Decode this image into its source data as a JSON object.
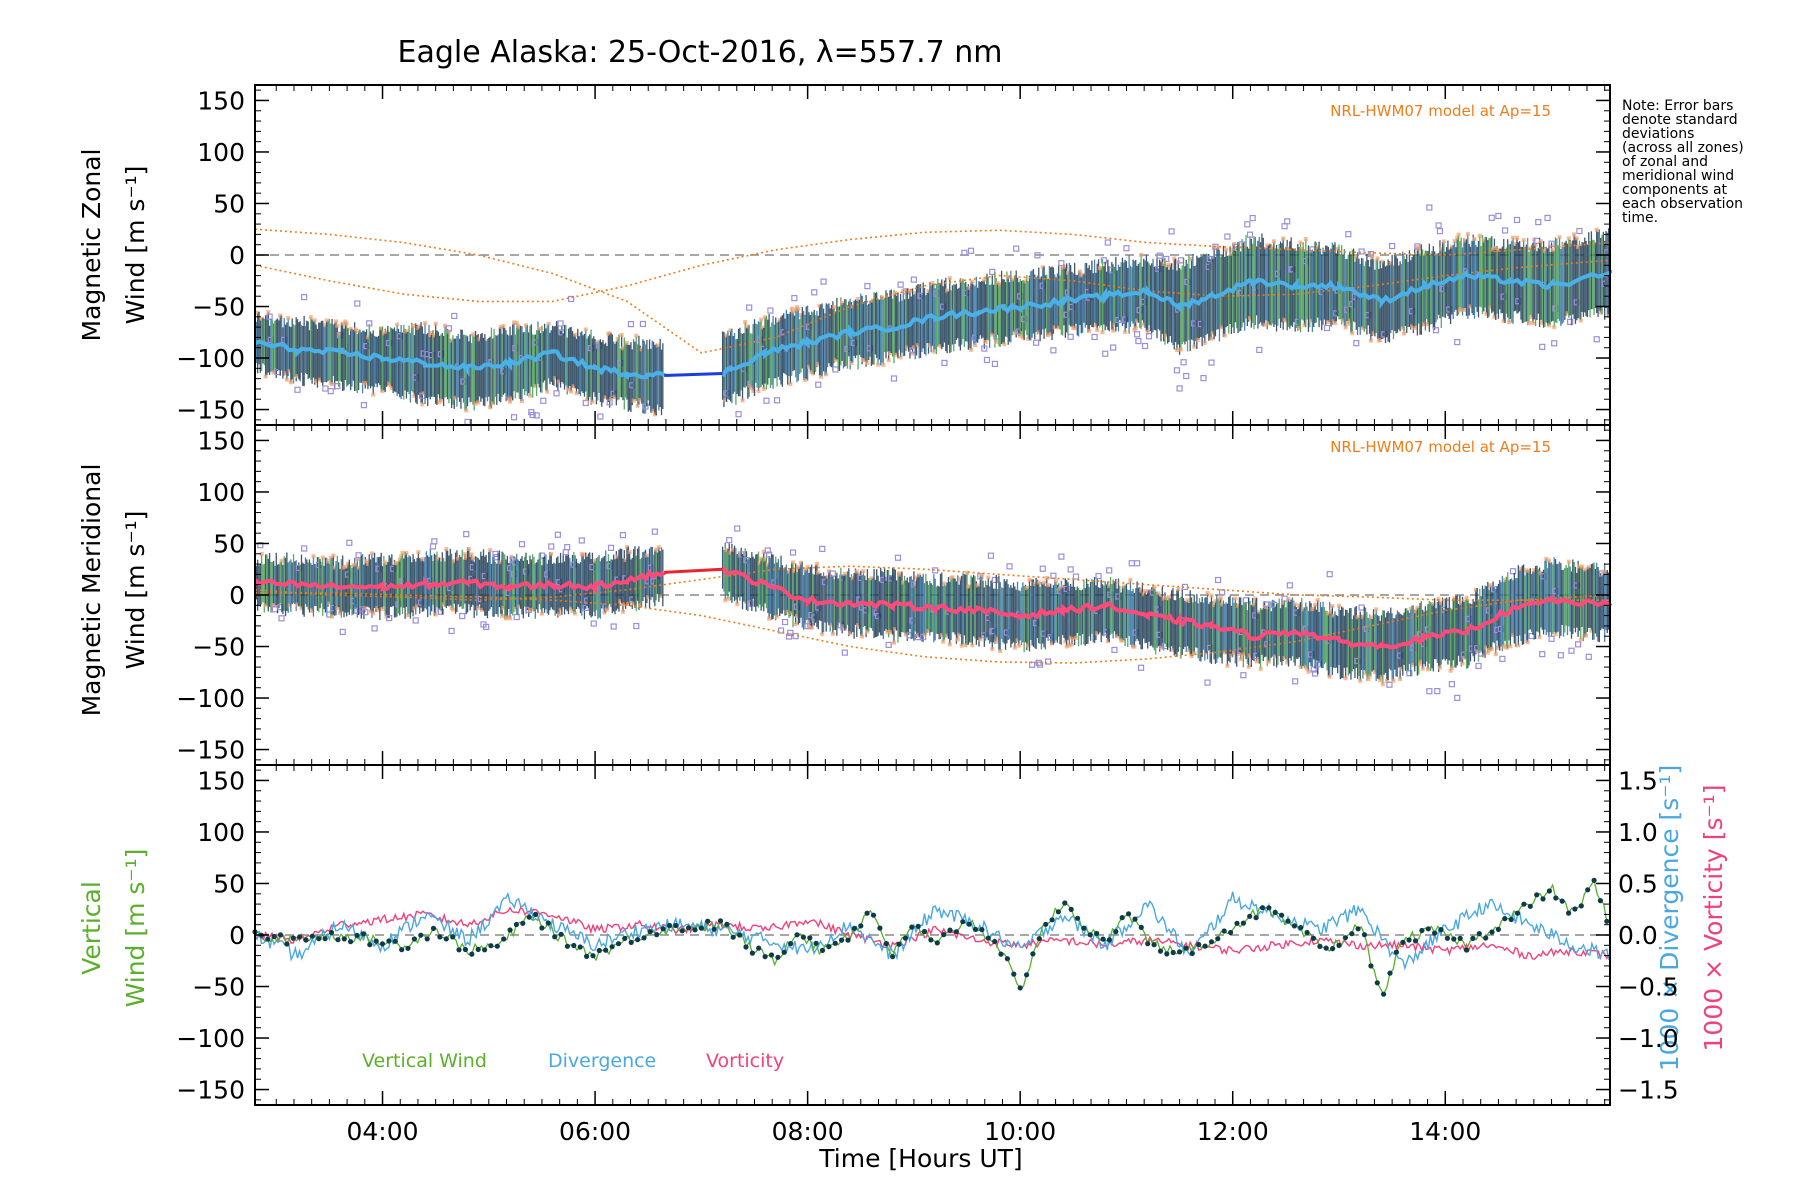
{
  "colors": {
    "zonal_mean": "#4ab0e8",
    "zonal_gap": "#1f3cde",
    "meridional_mean": "#ff4a7a",
    "meridional_gap": "#e8262d",
    "errorbar_dark": "#1b3a52",
    "errorbar_green": "#3e9a4a",
    "errorbar_orange": "#f5a06e",
    "scatter": "#9a8fdc",
    "model": "#f07d1a",
    "vertical": "#5bb02a",
    "vertical_dots": "#0d3b4a",
    "divergence": "#4aa8e0",
    "vorticity": "#f0427a",
    "zero_line": "#8a8a8a"
  },
  "figure": {
    "title": "Eagle Alaska: 25-Oct-2016, λ=557.7 nm",
    "xlabel": "Time [Hours UT]",
    "note": [
      "Note: Error bars",
      "denote standard",
      "deviations",
      "(across all zones)",
      "of zonal and",
      "meridional wind",
      "components at",
      "each observation",
      "time."
    ],
    "model_label": "NRL-HWM07 model at Ap=15"
  },
  "chart_data": [
    {
      "type": "line",
      "panel": "zonal",
      "ylabel_lines": [
        "Magnetic Zonal",
        "Wind [m s⁻¹]"
      ],
      "xlim": [
        2.8,
        15.55
      ],
      "ylim": [
        -165,
        165
      ],
      "xticks": [
        4,
        6,
        8,
        10,
        12,
        14
      ],
      "xtick_labels": [
        "04:00",
        "06:00",
        "08:00",
        "10:00",
        "12:00",
        "14:00"
      ],
      "yticks": [
        -150,
        -100,
        -50,
        0,
        50,
        100,
        150
      ],
      "zero_line": true,
      "gap": [
        6.65,
        7.2
      ],
      "series": [
        {
          "role": "mean",
          "x": [
            2.8,
            3.2,
            3.6,
            4.0,
            4.4,
            4.8,
            5.2,
            5.6,
            6.0,
            6.3,
            6.65,
            7.2,
            7.6,
            8.0,
            8.4,
            8.8,
            9.2,
            9.6,
            10.0,
            10.4,
            10.8,
            11.2,
            11.5,
            11.8,
            12.2,
            12.6,
            13.0,
            13.4,
            13.8,
            14.2,
            14.6,
            15.0,
            15.55
          ],
          "y": [
            -85,
            -92,
            -95,
            -100,
            -105,
            -110,
            -105,
            -95,
            -110,
            -115,
            -117,
            -115,
            -95,
            -85,
            -75,
            -70,
            -60,
            -55,
            -50,
            -45,
            -40,
            -35,
            -50,
            -40,
            -25,
            -30,
            -30,
            -45,
            -30,
            -20,
            -25,
            -30,
            -18
          ]
        },
        {
          "role": "upper",
          "y": [
            -60,
            -65,
            -70,
            -75,
            -70,
            -80,
            -72,
            -70,
            -80,
            -85,
            -85,
            -80,
            -65,
            -55,
            -45,
            -40,
            -30,
            -25,
            -20,
            -15,
            -10,
            -5,
            -10,
            0,
            15,
            10,
            5,
            -10,
            5,
            15,
            10,
            10,
            20
          ]
        },
        {
          "role": "lower",
          "y": [
            -110,
            -120,
            -125,
            -130,
            -140,
            -145,
            -140,
            -125,
            -140,
            -145,
            -150,
            -145,
            -125,
            -115,
            -105,
            -100,
            -90,
            -85,
            -80,
            -75,
            -70,
            -70,
            -90,
            -80,
            -65,
            -70,
            -65,
            -80,
            -70,
            -55,
            -60,
            -65,
            -55
          ]
        },
        {
          "role": "model_1",
          "x": [
            2.8,
            3.5,
            4.2,
            4.9,
            5.6,
            6.3,
            7.0,
            7.7,
            8.4,
            9.1,
            9.8,
            10.5,
            11.2,
            11.9,
            12.6,
            13.3,
            14.0,
            14.7,
            15.55
          ],
          "y": [
            25,
            20,
            12,
            0,
            -18,
            -45,
            -95,
            -80,
            -50,
            -30,
            -20,
            -25,
            -35,
            -40,
            -38,
            -30,
            -20,
            -12,
            -5
          ]
        },
        {
          "role": "model_2",
          "x": [
            2.8,
            3.5,
            4.2,
            4.9,
            5.6,
            6.3,
            7.0,
            7.7,
            8.4,
            9.1,
            9.8,
            10.5,
            11.2,
            11.9,
            12.6,
            13.3,
            14.0,
            14.7,
            15.55
          ],
          "y": [
            -10,
            -25,
            -38,
            -45,
            -45,
            -30,
            -10,
            5,
            15,
            22,
            24,
            20,
            12,
            8,
            5,
            2,
            0,
            5,
            12
          ]
        }
      ],
      "annotation": "NRL-HWM07 model at Ap=15"
    },
    {
      "type": "line",
      "panel": "meridional",
      "ylabel_lines": [
        "Magnetic Meridional",
        "Wind [m s⁻¹]"
      ],
      "xlim": [
        2.8,
        15.55
      ],
      "ylim": [
        -165,
        165
      ],
      "yticks": [
        -150,
        -100,
        -50,
        0,
        50,
        100,
        150
      ],
      "zero_line": true,
      "gap": [
        6.65,
        7.2
      ],
      "series": [
        {
          "role": "mean",
          "x": [
            2.8,
            3.2,
            3.6,
            4.0,
            4.4,
            4.8,
            5.2,
            5.6,
            6.0,
            6.3,
            6.65,
            7.2,
            7.6,
            8.0,
            8.4,
            8.8,
            9.2,
            9.6,
            10.0,
            10.4,
            10.8,
            11.2,
            11.5,
            11.8,
            12.2,
            12.6,
            13.0,
            13.4,
            13.8,
            14.2,
            14.6,
            15.0,
            15.55
          ],
          "y": [
            12,
            10,
            8,
            8,
            10,
            12,
            8,
            10,
            8,
            15,
            22,
            25,
            10,
            -5,
            -8,
            -10,
            -12,
            -15,
            -20,
            -15,
            -10,
            -20,
            -25,
            -30,
            -40,
            -35,
            -45,
            -50,
            -42,
            -35,
            -15,
            -5,
            -10
          ]
        },
        {
          "role": "upper",
          "y": [
            35,
            35,
            32,
            35,
            38,
            40,
            35,
            35,
            35,
            40,
            45,
            45,
            35,
            25,
            20,
            20,
            15,
            15,
            10,
            10,
            12,
            5,
            0,
            -5,
            -10,
            -8,
            -15,
            -20,
            -10,
            -5,
            20,
            30,
            25
          ]
        },
        {
          "role": "lower",
          "y": [
            -10,
            -15,
            -15,
            -18,
            -15,
            -15,
            -18,
            -15,
            -18,
            -10,
            -5,
            0,
            -15,
            -30,
            -35,
            -40,
            -40,
            -45,
            -50,
            -45,
            -40,
            -50,
            -55,
            -60,
            -65,
            -65,
            -75,
            -80,
            -70,
            -65,
            -45,
            -35,
            -40
          ]
        },
        {
          "role": "model_1",
          "x": [
            2.8,
            3.5,
            4.2,
            4.9,
            5.6,
            6.3,
            7.0,
            7.7,
            8.4,
            9.1,
            9.8,
            10.5,
            11.2,
            11.9,
            12.6,
            13.3,
            14.0,
            14.7,
            15.55
          ],
          "y": [
            5,
            0,
            -2,
            -5,
            -2,
            5,
            15,
            25,
            28,
            25,
            20,
            15,
            10,
            5,
            0,
            -2,
            -5,
            -5,
            -5
          ]
        },
        {
          "role": "model_2",
          "x": [
            2.8,
            3.5,
            4.2,
            4.9,
            5.6,
            6.3,
            7.0,
            7.7,
            8.4,
            9.1,
            9.8,
            10.5,
            11.2,
            11.9,
            12.6,
            13.3,
            14.0,
            14.7,
            15.55
          ],
          "y": [
            2,
            2,
            0,
            -2,
            -5,
            -10,
            -20,
            -35,
            -50,
            -60,
            -65,
            -66,
            -62,
            -55,
            -45,
            -30,
            -15,
            -5,
            0
          ]
        }
      ],
      "annotation": "NRL-HWM07 model at Ap=15"
    },
    {
      "type": "line",
      "panel": "vertical",
      "ylabel_lines": [
        "Vertical",
        "Wind [m s⁻¹]"
      ],
      "y2label_lines": [
        "1000 × Divergence [s⁻¹]",
        "1000 × Vorticity [s⁻¹]"
      ],
      "xlim": [
        2.8,
        15.55
      ],
      "ylim": [
        -165,
        165
      ],
      "y2lim": [
        -1.65,
        1.65
      ],
      "yticks": [
        -150,
        -100,
        -50,
        0,
        50,
        100,
        150
      ],
      "y2ticks": [
        -1.5,
        -1.0,
        -0.5,
        0.0,
        0.5,
        1.0,
        1.5
      ],
      "y2tick_labels": [
        "−1.5",
        "−1.0",
        "−0.5",
        "0.0",
        "0.5",
        "1.0",
        "1.5"
      ],
      "zero_line": true,
      "legend": [
        "Vertical Wind",
        "Divergence",
        "Vorticity"
      ],
      "series": [
        {
          "name": "Vertical Wind",
          "x": [
            2.8,
            3.0,
            3.3,
            3.6,
            3.9,
            4.2,
            4.5,
            4.8,
            5.1,
            5.4,
            5.7,
            6.0,
            6.3,
            6.6,
            7.2,
            7.5,
            7.7,
            7.9,
            8.1,
            8.4,
            8.6,
            8.8,
            9.0,
            9.2,
            9.5,
            9.8,
            10.0,
            10.2,
            10.4,
            10.6,
            10.8,
            11.0,
            11.2,
            11.5,
            11.7,
            11.9,
            12.1,
            12.3,
            12.6,
            12.9,
            13.2,
            13.4,
            13.6,
            13.9,
            14.2,
            14.5,
            14.8,
            15.0,
            15.2,
            15.4,
            15.55
          ],
          "y": [
            0,
            -5,
            -2,
            0,
            -5,
            -10,
            5,
            -15,
            -10,
            20,
            -5,
            -20,
            -5,
            5,
            10,
            -15,
            -25,
            5,
            -15,
            0,
            25,
            -20,
            10,
            -10,
            15,
            -10,
            -55,
            5,
            30,
            10,
            -10,
            25,
            -5,
            -20,
            -10,
            0,
            15,
            25,
            5,
            -15,
            10,
            -60,
            -5,
            5,
            -10,
            10,
            30,
            45,
            20,
            50,
            10
          ]
        },
        {
          "name": "Divergence",
          "x": [
            2.8,
            3.2,
            3.6,
            4.0,
            4.4,
            4.8,
            5.2,
            5.6,
            6.0,
            6.4,
            6.8,
            7.2,
            7.6,
            8.0,
            8.4,
            8.8,
            9.2,
            9.6,
            10.0,
            10.4,
            10.8,
            11.2,
            11.6,
            12.0,
            12.4,
            12.8,
            13.2,
            13.6,
            14.0,
            14.4,
            14.8,
            15.2,
            15.55
          ],
          "y": [
            0.0,
            -0.2,
            0.1,
            -0.1,
            0.2,
            -0.05,
            0.35,
            0.1,
            -0.1,
            0.05,
            0.1,
            0.05,
            -0.05,
            -0.15,
            0.1,
            -0.2,
            0.25,
            0.1,
            -0.15,
            0.2,
            -0.1,
            0.3,
            -0.2,
            0.35,
            0.2,
            0.05,
            0.25,
            -0.3,
            0.05,
            0.3,
            0.1,
            -0.1,
            -0.2
          ]
        },
        {
          "name": "Vorticity",
          "x": [
            2.8,
            3.2,
            3.6,
            4.0,
            4.4,
            4.8,
            5.2,
            5.6,
            6.0,
            6.4,
            6.8,
            7.2,
            7.6,
            8.0,
            8.4,
            8.8,
            9.2,
            9.6,
            10.0,
            10.4,
            10.8,
            11.2,
            11.6,
            12.0,
            12.4,
            12.8,
            13.2,
            13.6,
            14.0,
            14.4,
            14.8,
            15.2,
            15.55
          ],
          "y": [
            0.0,
            -0.05,
            0.1,
            0.15,
            0.2,
            0.1,
            0.25,
            0.2,
            0.05,
            0.1,
            0.05,
            0.1,
            0.05,
            0.15,
            0.0,
            -0.1,
            0.05,
            -0.05,
            -0.1,
            -0.05,
            -0.1,
            -0.05,
            -0.1,
            -0.15,
            -0.1,
            -0.05,
            -0.1,
            -0.1,
            -0.15,
            -0.1,
            -0.2,
            -0.15,
            -0.2
          ]
        }
      ]
    }
  ]
}
